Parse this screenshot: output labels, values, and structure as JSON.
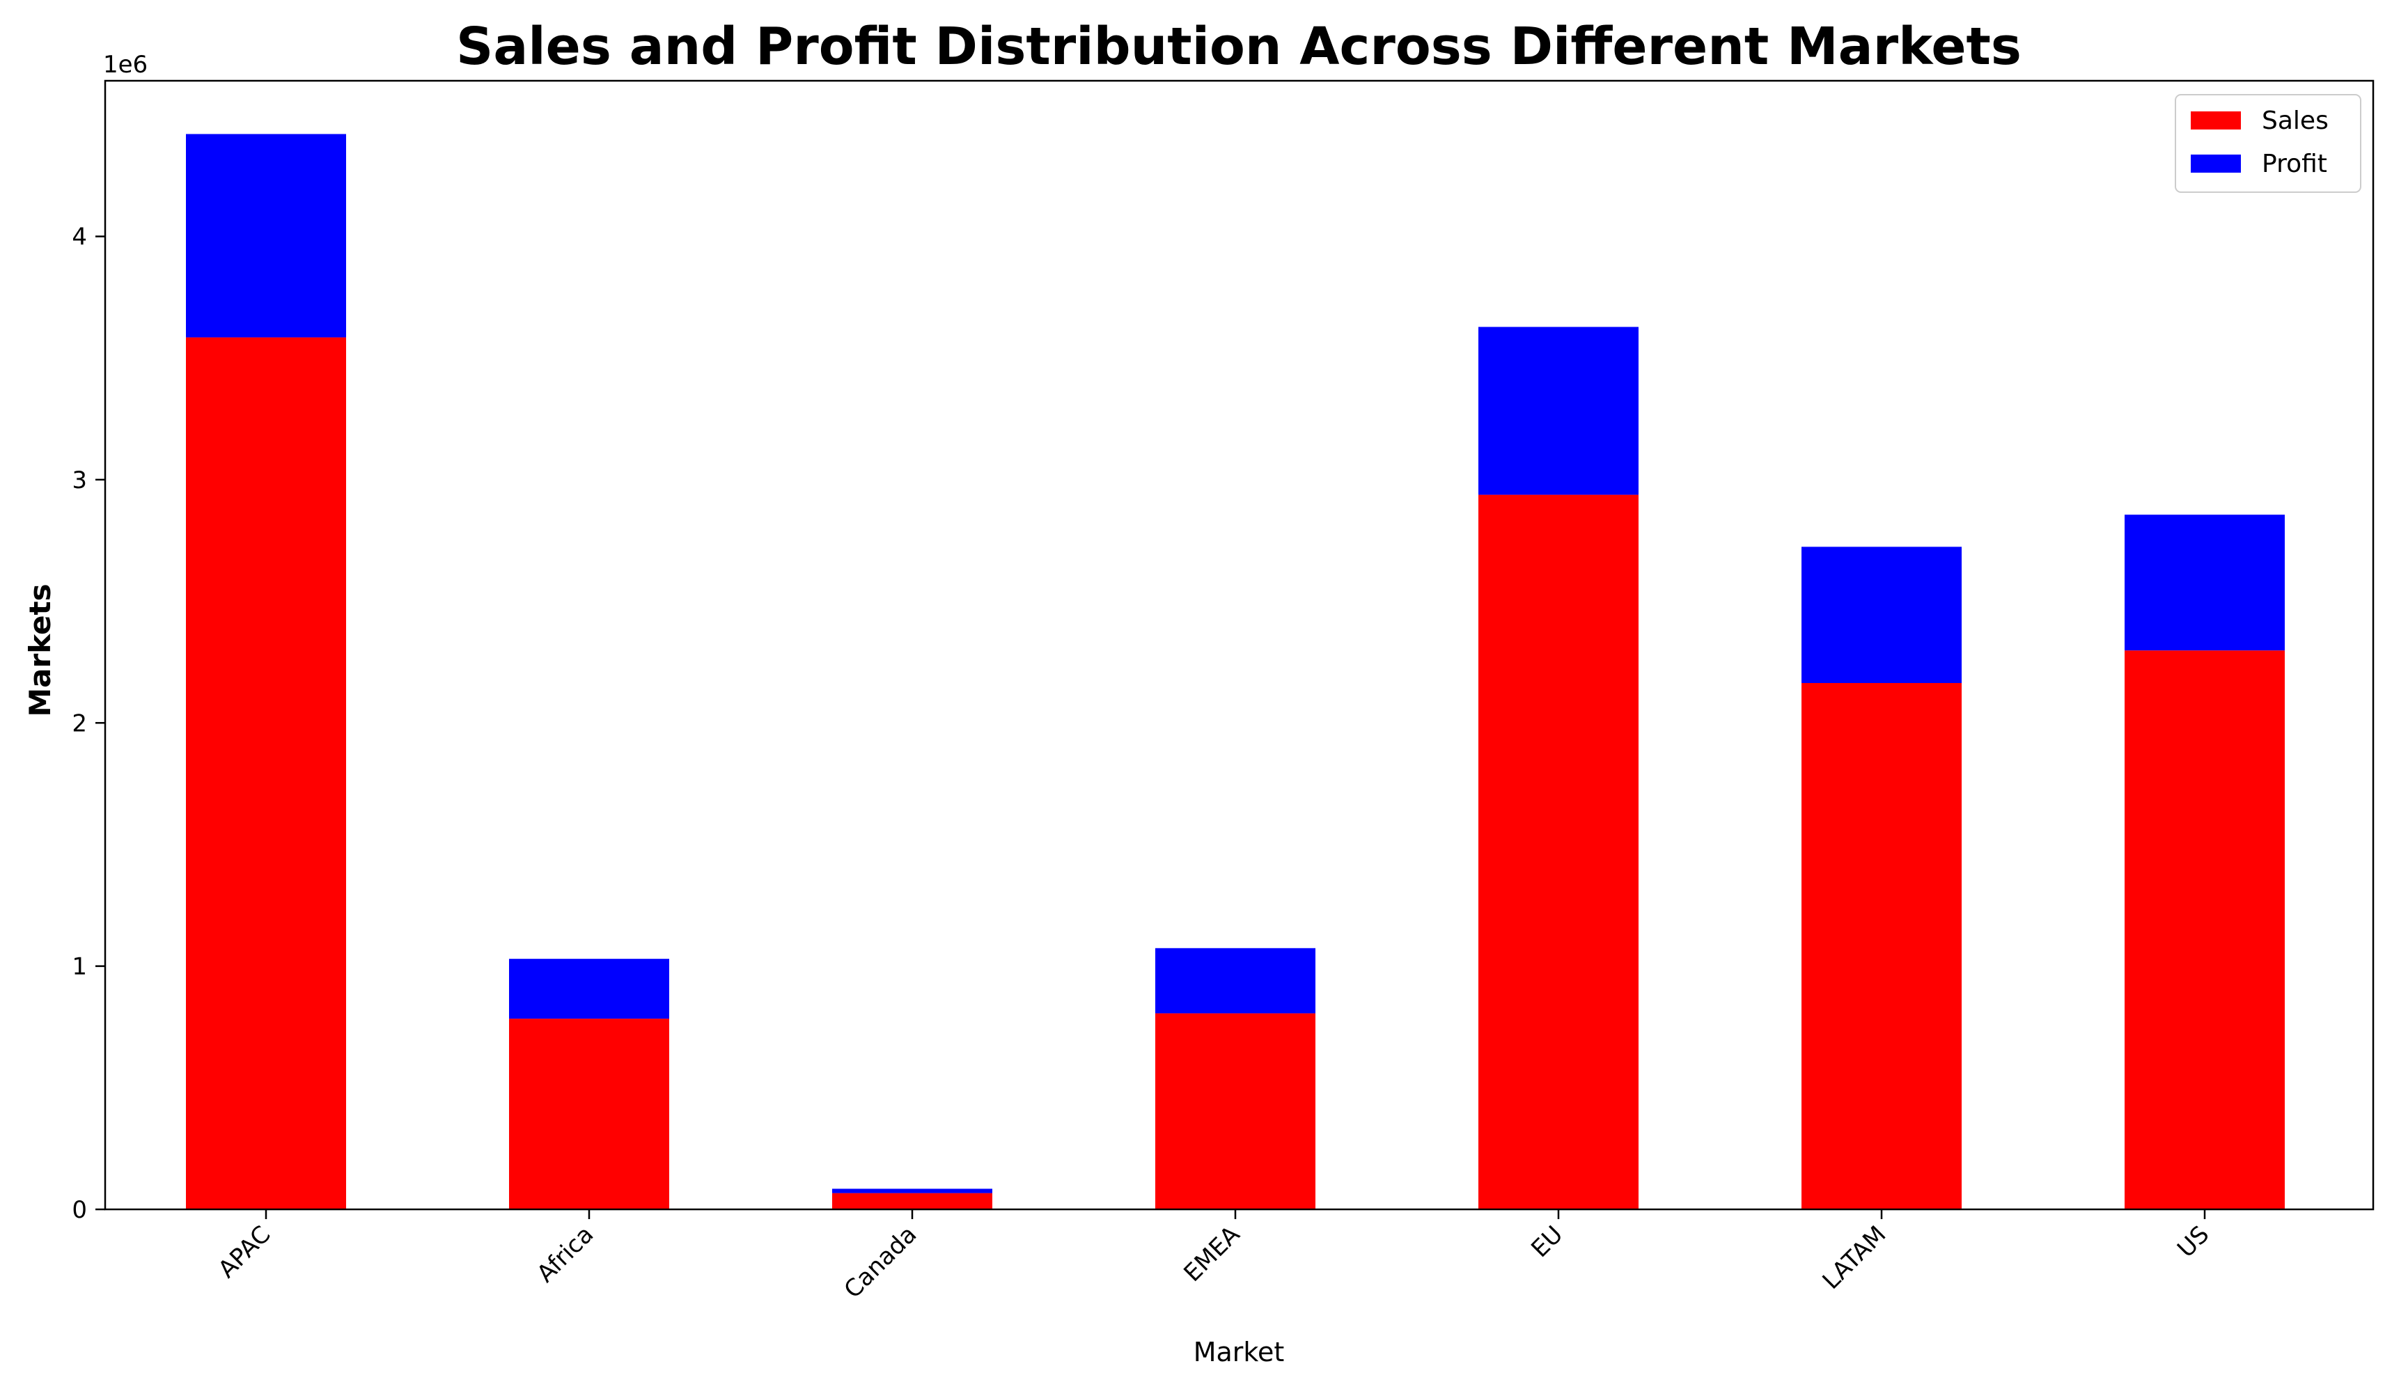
{
  "chart_data": {
    "type": "bar",
    "stacked": true,
    "title": "Sales and Profit Distribution Across Different Markets",
    "xlabel": "Market",
    "ylabel": "Markets",
    "y_offset_label": "1e6",
    "categories": [
      "APAC",
      "Africa",
      "Canada",
      "EMEA",
      "EU",
      "LATAM",
      "US"
    ],
    "series": [
      {
        "name": "Sales",
        "color": "#ff0000",
        "values": [
          3585000,
          784000,
          66900,
          806000,
          2938000,
          2164000,
          2298000
        ]
      },
      {
        "name": "Profit",
        "color": "#0000ff",
        "values": [
          836000,
          246000,
          17800,
          268000,
          690000,
          560000,
          558000
        ]
      }
    ],
    "ylim": [
      0,
      4640000
    ],
    "yticks": [
      {
        "value": 0,
        "label": "0"
      },
      {
        "value": 1000000,
        "label": "1"
      },
      {
        "value": 2000000,
        "label": "2"
      },
      {
        "value": 3000000,
        "label": "3"
      },
      {
        "value": 4000000,
        "label": "4"
      }
    ],
    "grid": false,
    "legend_position": "top-right"
  }
}
